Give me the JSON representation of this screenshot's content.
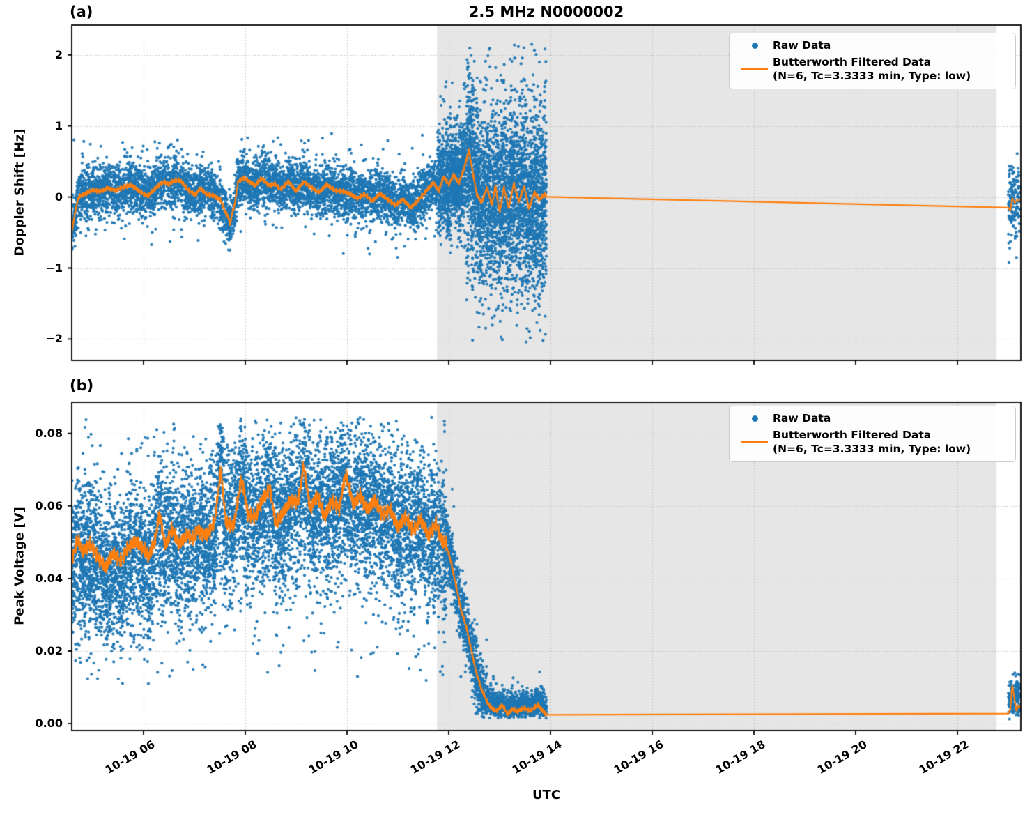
{
  "figure": {
    "title": "2.5 MHz N0000002",
    "xlabel": "UTC",
    "colors": {
      "raw": "#1f77b4",
      "filtered": "#ff7f0e",
      "shade": "#e6e6e6",
      "grid": "#bcbcbc",
      "spine": "#000000",
      "background": "#ffffff"
    },
    "xticks": [
      {
        "t": 6,
        "label": "10-19 06"
      },
      {
        "t": 8,
        "label": "10-19 08"
      },
      {
        "t": 10,
        "label": "10-19 10"
      },
      {
        "t": 12,
        "label": "10-19 12"
      },
      {
        "t": 14,
        "label": "10-19 14"
      },
      {
        "t": 16,
        "label": "10-19 16"
      },
      {
        "t": 18,
        "label": "10-19 18"
      },
      {
        "t": 20,
        "label": "10-19 20"
      },
      {
        "t": 22,
        "label": "10-19 22"
      }
    ],
    "x_unit_note": "decimal hours UTC on 10-19"
  },
  "chart_data": [
    {
      "type": "scatter",
      "panel_label": "(a)",
      "ylabel": "Doppler Shift [Hz]",
      "ylim": [
        -2.3,
        2.42
      ],
      "yticks": [
        {
          "v": 2,
          "label": "2"
        },
        {
          "v": 1,
          "label": "1"
        },
        {
          "v": 0,
          "label": "0"
        },
        {
          "v": -1,
          "label": "−1"
        },
        {
          "v": -2,
          "label": "−2"
        }
      ],
      "x_hours_lim": [
        4.589,
        23.247
      ],
      "shaded_x_region": [
        11.77,
        22.77
      ],
      "grid": true,
      "legend_loc": "upper right",
      "legend": {
        "raw": "Raw Data",
        "filtered_line1": "Butterworth Filtered Data",
        "filtered_line2": "(N=6, Tc=3.3333 min, Type: low)"
      },
      "series": [
        {
          "name": "Raw Data",
          "type": "scatter",
          "model_segments": [
            {
              "t0": 4.589,
              "t1": 11.77,
              "n": 6000,
              "center": "line",
              "sigma": 0.17,
              "tail_frac": 0.12,
              "tail_sigma": 0.33,
              "clip": [
                -0.85,
                0.9
              ]
            },
            {
              "t0": 11.77,
              "t1": 12.35,
              "n": 1100,
              "center": "line",
              "sigma": 0.33,
              "tail_frac": 0.2,
              "tail_sigma": 0.6,
              "clip": [
                -1.4,
                1.7
              ]
            },
            {
              "t0": 12.35,
              "t1": 13.92,
              "n": 3200,
              "center": "line",
              "sigma": 0.55,
              "tail_frac": 0.28,
              "tail_sigma": 0.95,
              "clip": [
                -2.08,
                2.15
              ]
            },
            {
              "t0": 23.0,
              "t1": 23.23,
              "n": 150,
              "center": -0.06,
              "sigma": 0.27,
              "tail_frac": 0.15,
              "tail_sigma": 0.42,
              "clip": [
                -0.95,
                0.62
              ]
            }
          ]
        },
        {
          "name": "Butterworth Filtered Data (N=6, Tc=3.3333 min, Type: low)",
          "type": "line",
          "points": [
            [
              4.589,
              -0.48
            ],
            [
              4.65,
              -0.25
            ],
            [
              4.72,
              -0.02
            ],
            [
              4.85,
              0.06
            ],
            [
              5.0,
              0.11
            ],
            [
              5.15,
              0.09
            ],
            [
              5.3,
              0.13
            ],
            [
              5.45,
              0.09
            ],
            [
              5.6,
              0.13
            ],
            [
              5.75,
              0.16
            ],
            [
              5.9,
              0.08
            ],
            [
              6.0,
              0.05
            ],
            [
              6.1,
              0.03
            ],
            [
              6.25,
              0.15
            ],
            [
              6.4,
              0.23
            ],
            [
              6.5,
              0.17
            ],
            [
              6.62,
              0.25
            ],
            [
              6.75,
              0.2
            ],
            [
              6.85,
              0.13
            ],
            [
              7.0,
              0.04
            ],
            [
              7.12,
              0.11
            ],
            [
              7.25,
              0.05
            ],
            [
              7.4,
              0.03
            ],
            [
              7.5,
              -0.04
            ],
            [
              7.62,
              -0.22
            ],
            [
              7.7,
              -0.36
            ],
            [
              7.78,
              -0.14
            ],
            [
              7.86,
              0.21
            ],
            [
              7.95,
              0.28
            ],
            [
              8.08,
              0.2
            ],
            [
              8.2,
              0.15
            ],
            [
              8.33,
              0.27
            ],
            [
              8.45,
              0.16
            ],
            [
              8.58,
              0.2
            ],
            [
              8.7,
              0.12
            ],
            [
              8.85,
              0.22
            ],
            [
              9.0,
              0.08
            ],
            [
              9.15,
              0.21
            ],
            [
              9.3,
              0.12
            ],
            [
              9.45,
              0.05
            ],
            [
              9.6,
              0.16
            ],
            [
              9.75,
              0.08
            ],
            [
              9.9,
              0.07
            ],
            [
              10.05,
              0.04
            ],
            [
              10.2,
              -0.02
            ],
            [
              10.35,
              0.04
            ],
            [
              10.5,
              -0.05
            ],
            [
              10.65,
              0.06
            ],
            [
              10.8,
              -0.02
            ],
            [
              10.95,
              -0.1
            ],
            [
              11.1,
              -0.02
            ],
            [
              11.25,
              -0.14
            ],
            [
              11.4,
              -0.04
            ],
            [
              11.55,
              0.08
            ],
            [
              11.7,
              0.2
            ],
            [
              11.8,
              0.1
            ],
            [
              11.9,
              0.28
            ],
            [
              12.0,
              0.16
            ],
            [
              12.1,
              0.33
            ],
            [
              12.2,
              0.2
            ],
            [
              12.3,
              0.38
            ],
            [
              12.4,
              0.66
            ],
            [
              12.48,
              0.3
            ],
            [
              12.55,
              0.04
            ],
            [
              12.65,
              -0.06
            ],
            [
              12.75,
              0.13
            ],
            [
              12.85,
              -0.13
            ],
            [
              12.92,
              0.17
            ],
            [
              13.0,
              -0.23
            ],
            [
              13.08,
              0.13
            ],
            [
              13.18,
              -0.16
            ],
            [
              13.28,
              0.21
            ],
            [
              13.38,
              -0.07
            ],
            [
              13.48,
              0.13
            ],
            [
              13.58,
              -0.15
            ],
            [
              13.68,
              0.07
            ],
            [
              13.78,
              -0.05
            ],
            [
              13.88,
              0.03
            ],
            [
              13.92,
              0.01
            ],
            [
              23.0,
              -0.15
            ],
            [
              23.04,
              -0.19
            ],
            [
              23.08,
              -0.02
            ],
            [
              23.13,
              -0.08
            ],
            [
              23.18,
              -0.04
            ],
            [
              23.25,
              -0.05
            ]
          ],
          "jitter": [
            {
              "t0": 4.589,
              "t1": 13.92,
              "amp": 0.045,
              "freq": 55
            }
          ]
        }
      ]
    },
    {
      "type": "scatter",
      "panel_label": "(b)",
      "ylabel": "Peak Voltage [V]",
      "ylim": [
        -0.0019,
        0.0886
      ],
      "yticks": [
        {
          "v": 0.08,
          "label": "0.08"
        },
        {
          "v": 0.06,
          "label": "0.06"
        },
        {
          "v": 0.04,
          "label": "0.04"
        },
        {
          "v": 0.02,
          "label": "0.02"
        },
        {
          "v": 0.0,
          "label": "0.00"
        }
      ],
      "x_hours_lim": [
        4.589,
        23.247
      ],
      "shaded_x_region": [
        11.77,
        22.77
      ],
      "grid": true,
      "legend_loc": "upper right",
      "legend": {
        "raw": "Raw Data",
        "filtered_line1": "Butterworth Filtered Data",
        "filtered_line2": "(N=6, Tc=3.3333 min, Type: low)"
      },
      "series": [
        {
          "name": "Raw Data",
          "type": "scatter",
          "model_segments": [
            {
              "t0": 4.589,
              "t1": 11.95,
              "n": 9000,
              "center": "line",
              "center_offset": -0.002,
              "sigma": 0.0095,
              "tail_frac": 0.15,
              "tail_sigma": 0.017,
              "clip": [
                0.011,
                0.0845
              ]
            },
            {
              "t0": 11.95,
              "t1": 12.75,
              "n": 900,
              "center": "line",
              "sigma": 0.004,
              "tail_frac": 0.1,
              "tail_sigma": 0.007,
              "clip": [
                0.0015,
                0.07
              ]
            },
            {
              "t0": 12.75,
              "t1": 13.92,
              "n": 1100,
              "center": "line",
              "center_offset": 0.0012,
              "sigma": 0.0018,
              "tail_frac": 0.1,
              "tail_sigma": 0.0035,
              "clip": [
                0.0015,
                0.016
              ]
            },
            {
              "t0": 23.0,
              "t1": 23.23,
              "n": 170,
              "center": 0.0068,
              "sigma": 0.003,
              "tail_frac": 0.1,
              "tail_sigma": 0.004,
              "clip": [
                0.0012,
                0.014
              ]
            }
          ]
        },
        {
          "name": "Butterworth Filtered Data (N=6, Tc=3.3333 min, Type: low)",
          "type": "line",
          "points": [
            [
              4.589,
              0.044
            ],
            [
              4.7,
              0.05
            ],
            [
              4.8,
              0.047
            ],
            [
              4.95,
              0.049
            ],
            [
              5.1,
              0.045
            ],
            [
              5.25,
              0.042
            ],
            [
              5.4,
              0.046
            ],
            [
              5.55,
              0.044
            ],
            [
              5.7,
              0.048
            ],
            [
              5.85,
              0.05
            ],
            [
              6.0,
              0.048
            ],
            [
              6.1,
              0.045
            ],
            [
              6.2,
              0.05
            ],
            [
              6.32,
              0.057
            ],
            [
              6.42,
              0.05
            ],
            [
              6.55,
              0.053
            ],
            [
              6.7,
              0.049
            ],
            [
              6.85,
              0.052
            ],
            [
              7.0,
              0.051
            ],
            [
              7.12,
              0.054
            ],
            [
              7.25,
              0.051
            ],
            [
              7.4,
              0.055
            ],
            [
              7.52,
              0.071
            ],
            [
              7.62,
              0.054
            ],
            [
              7.78,
              0.056
            ],
            [
              7.92,
              0.067
            ],
            [
              8.05,
              0.058
            ],
            [
              8.2,
              0.057
            ],
            [
              8.35,
              0.062
            ],
            [
              8.48,
              0.066
            ],
            [
              8.6,
              0.056
            ],
            [
              8.75,
              0.059
            ],
            [
              8.9,
              0.062
            ],
            [
              9.02,
              0.06
            ],
            [
              9.14,
              0.071
            ],
            [
              9.28,
              0.058
            ],
            [
              9.42,
              0.063
            ],
            [
              9.56,
              0.058
            ],
            [
              9.7,
              0.062
            ],
            [
              9.85,
              0.06
            ],
            [
              9.98,
              0.068
            ],
            [
              10.12,
              0.061
            ],
            [
              10.26,
              0.064
            ],
            [
              10.4,
              0.059
            ],
            [
              10.55,
              0.062
            ],
            [
              10.7,
              0.058
            ],
            [
              10.85,
              0.06
            ],
            [
              11.0,
              0.055
            ],
            [
              11.15,
              0.058
            ],
            [
              11.3,
              0.054
            ],
            [
              11.45,
              0.057
            ],
            [
              11.6,
              0.052
            ],
            [
              11.75,
              0.055
            ],
            [
              11.85,
              0.052
            ],
            [
              11.95,
              0.049
            ],
            [
              12.05,
              0.044
            ],
            [
              12.15,
              0.038
            ],
            [
              12.25,
              0.031
            ],
            [
              12.35,
              0.026
            ],
            [
              12.45,
              0.02
            ],
            [
              12.55,
              0.014
            ],
            [
              12.65,
              0.009
            ],
            [
              12.75,
              0.006
            ],
            [
              12.85,
              0.0045
            ],
            [
              12.95,
              0.0035
            ],
            [
              13.05,
              0.0048
            ],
            [
              13.15,
              0.003
            ],
            [
              13.25,
              0.0042
            ],
            [
              13.35,
              0.003
            ],
            [
              13.48,
              0.0046
            ],
            [
              13.6,
              0.0034
            ],
            [
              13.75,
              0.005
            ],
            [
              13.92,
              0.0028
            ],
            [
              23.0,
              0.0028
            ],
            [
              23.04,
              0.004
            ],
            [
              23.08,
              0.0105
            ],
            [
              23.12,
              0.007
            ],
            [
              23.16,
              0.0035
            ],
            [
              23.2,
              0.005
            ],
            [
              23.25,
              0.0045
            ]
          ],
          "jitter": [
            {
              "t0": 4.589,
              "t1": 11.95,
              "amp": 0.0028,
              "freq": 55
            },
            {
              "t0": 11.95,
              "t1": 13.92,
              "amp": 0.0009,
              "freq": 55
            }
          ]
        }
      ]
    }
  ]
}
